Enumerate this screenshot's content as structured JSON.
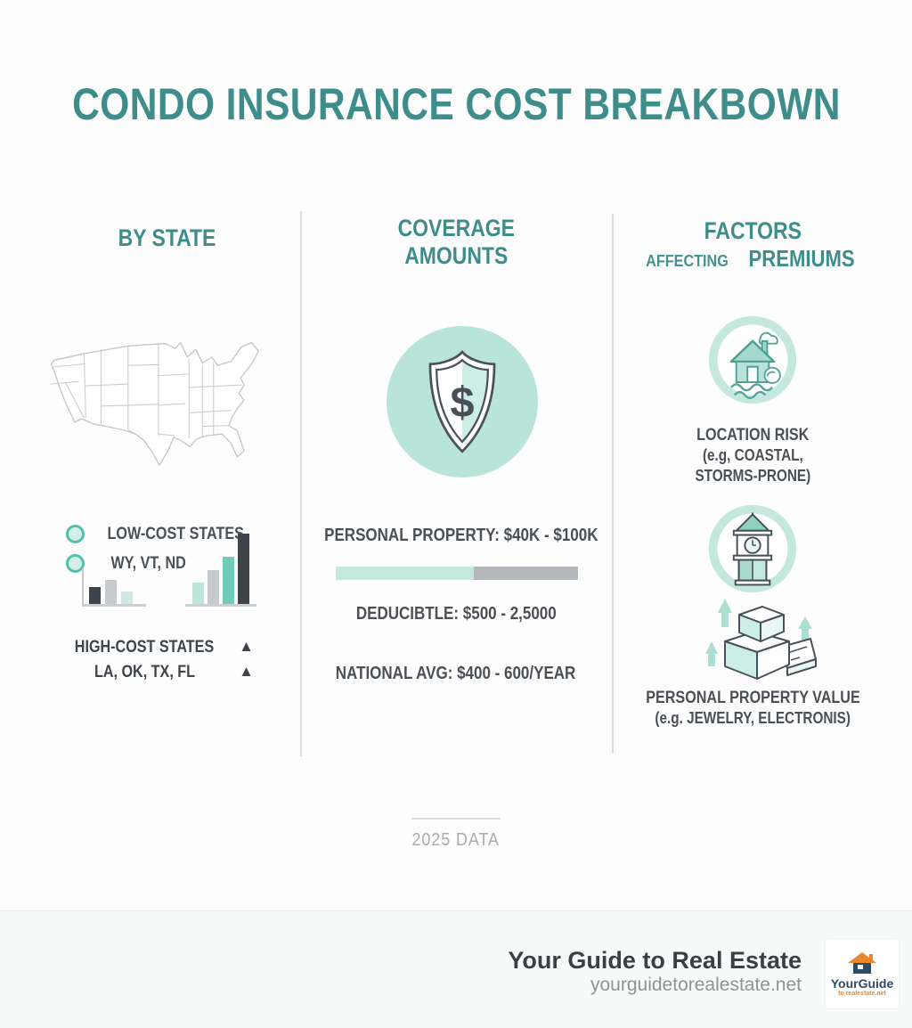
{
  "palette": {
    "teal": "#3f8d8b",
    "mint": "#bfe5da",
    "mint_light": "#cdeee5",
    "mint_pale": "#cfe9e2",
    "teal_bar": "#6fccbb",
    "gray": "#c7cbcf",
    "dark": "#3e444b",
    "text_dark": "#4a5056",
    "text_gray": "#a9adb1",
    "progress_gray": "#b4b7bc",
    "map_stroke": "#c0c7cd",
    "logo_navy": "#2e4a66",
    "logo_orange": "#e8872e"
  },
  "title": "CONDO INSURANCE COST BREAKBOWN",
  "by_state": {
    "header": "BY STATE",
    "low_cost_label": "LOW-COST STATES",
    "low_cost_states": "WY, VT, ND",
    "high_cost_label": "HIGH-COST STATES",
    "high_cost_states": "LA, OK, TX, FL",
    "marker_up": "▲"
  },
  "coverage": {
    "header_line1": "COVERAGE",
    "header_line2": "AMOUNTS",
    "shield_symbol": "$",
    "personal_property": "PERSONAL PROPERTY: $40K - $100K",
    "bar_fill_percent": 57,
    "deductible": "DEDUCIBTLE: $500 - 2,5000",
    "national_avg": "NATIONAL AVG: $400 - 600/YEAR"
  },
  "factors": {
    "header_line1": "FACTORS",
    "header_affecting": "AFFECTING",
    "header_premiums": "PREMIUMS",
    "location_risk": [
      "LOCATION RISK",
      "(e.g, COASTAL,",
      "STORMS-PRONE)"
    ],
    "property_value": [
      "PERSONAL PROPERTY VALUE",
      "(e.g. JEWELRY, ELECTRONIS)"
    ]
  },
  "footnote": "2025 DATA",
  "footer": {
    "brand": "Your Guide to Real Estate",
    "website": "yourguidetorealestate.net",
    "logo_name": "YourGuide",
    "logo_tagline": "to realestate.net"
  },
  "chart_data": [
    {
      "type": "bar",
      "title": "low-cost states mini chart",
      "values": [
        19,
        27,
        14
      ],
      "colors": [
        "dark",
        "gray",
        "mint_pale"
      ]
    },
    {
      "type": "bar",
      "title": "cost trend chart",
      "values": [
        24,
        38,
        53,
        79
      ],
      "colors": [
        "mint",
        "gray",
        "teal_bar",
        "dark"
      ]
    }
  ]
}
